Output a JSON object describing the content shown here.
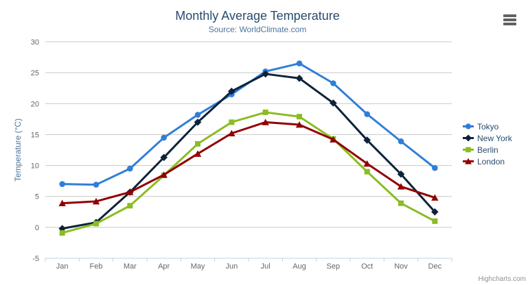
{
  "header": {
    "title": "Monthly Average Temperature",
    "subtitle": "Source: WorldClimate.com"
  },
  "credits": {
    "label": "Highcharts.com"
  },
  "icons": {
    "context_menu": "hamburger-icon"
  },
  "styles": {
    "background": "#ffffff",
    "title_color": "#274b6d",
    "subtitle_color": "#4d759e",
    "axis_title_color": "#4d759e",
    "axis_label_color": "#666666",
    "grid_color": "#c8c8c8",
    "axis_line_color": "#c0d0e0",
    "legend_text_color": "#274b6d",
    "credits_color": "#909090",
    "menu_icon_color": "#616161"
  },
  "chart_data": {
    "type": "line",
    "title": "Monthly Average Temperature",
    "subtitle": "Source: WorldClimate.com",
    "xlabel": "",
    "ylabel": "Temperature (°C)",
    "categories": [
      "Jan",
      "Feb",
      "Mar",
      "Apr",
      "May",
      "Jun",
      "Jul",
      "Aug",
      "Sep",
      "Oct",
      "Nov",
      "Dec"
    ],
    "ylim": [
      -5,
      30
    ],
    "ytick_step": 5,
    "grid": true,
    "legend_position": "right",
    "series": [
      {
        "name": "Tokyo",
        "color": "#2f7ed8",
        "marker": "circle",
        "values": [
          7.0,
          6.9,
          9.5,
          14.5,
          18.2,
          21.5,
          25.2,
          26.5,
          23.3,
          18.3,
          13.9,
          9.6
        ]
      },
      {
        "name": "New York",
        "color": "#0d233a",
        "marker": "diamond",
        "values": [
          -0.2,
          0.8,
          5.7,
          11.3,
          17.0,
          22.0,
          24.8,
          24.1,
          20.1,
          14.1,
          8.6,
          2.5
        ]
      },
      {
        "name": "Berlin",
        "color": "#8bbc21",
        "marker": "square",
        "values": [
          -0.9,
          0.6,
          3.5,
          8.4,
          13.5,
          17.0,
          18.6,
          17.9,
          14.3,
          9.0,
          3.9,
          1.0
        ]
      },
      {
        "name": "London",
        "color": "#910000",
        "marker": "triangle",
        "values": [
          3.9,
          4.2,
          5.7,
          8.5,
          11.9,
          15.2,
          17.0,
          16.6,
          14.2,
          10.3,
          6.6,
          4.8
        ]
      }
    ]
  }
}
